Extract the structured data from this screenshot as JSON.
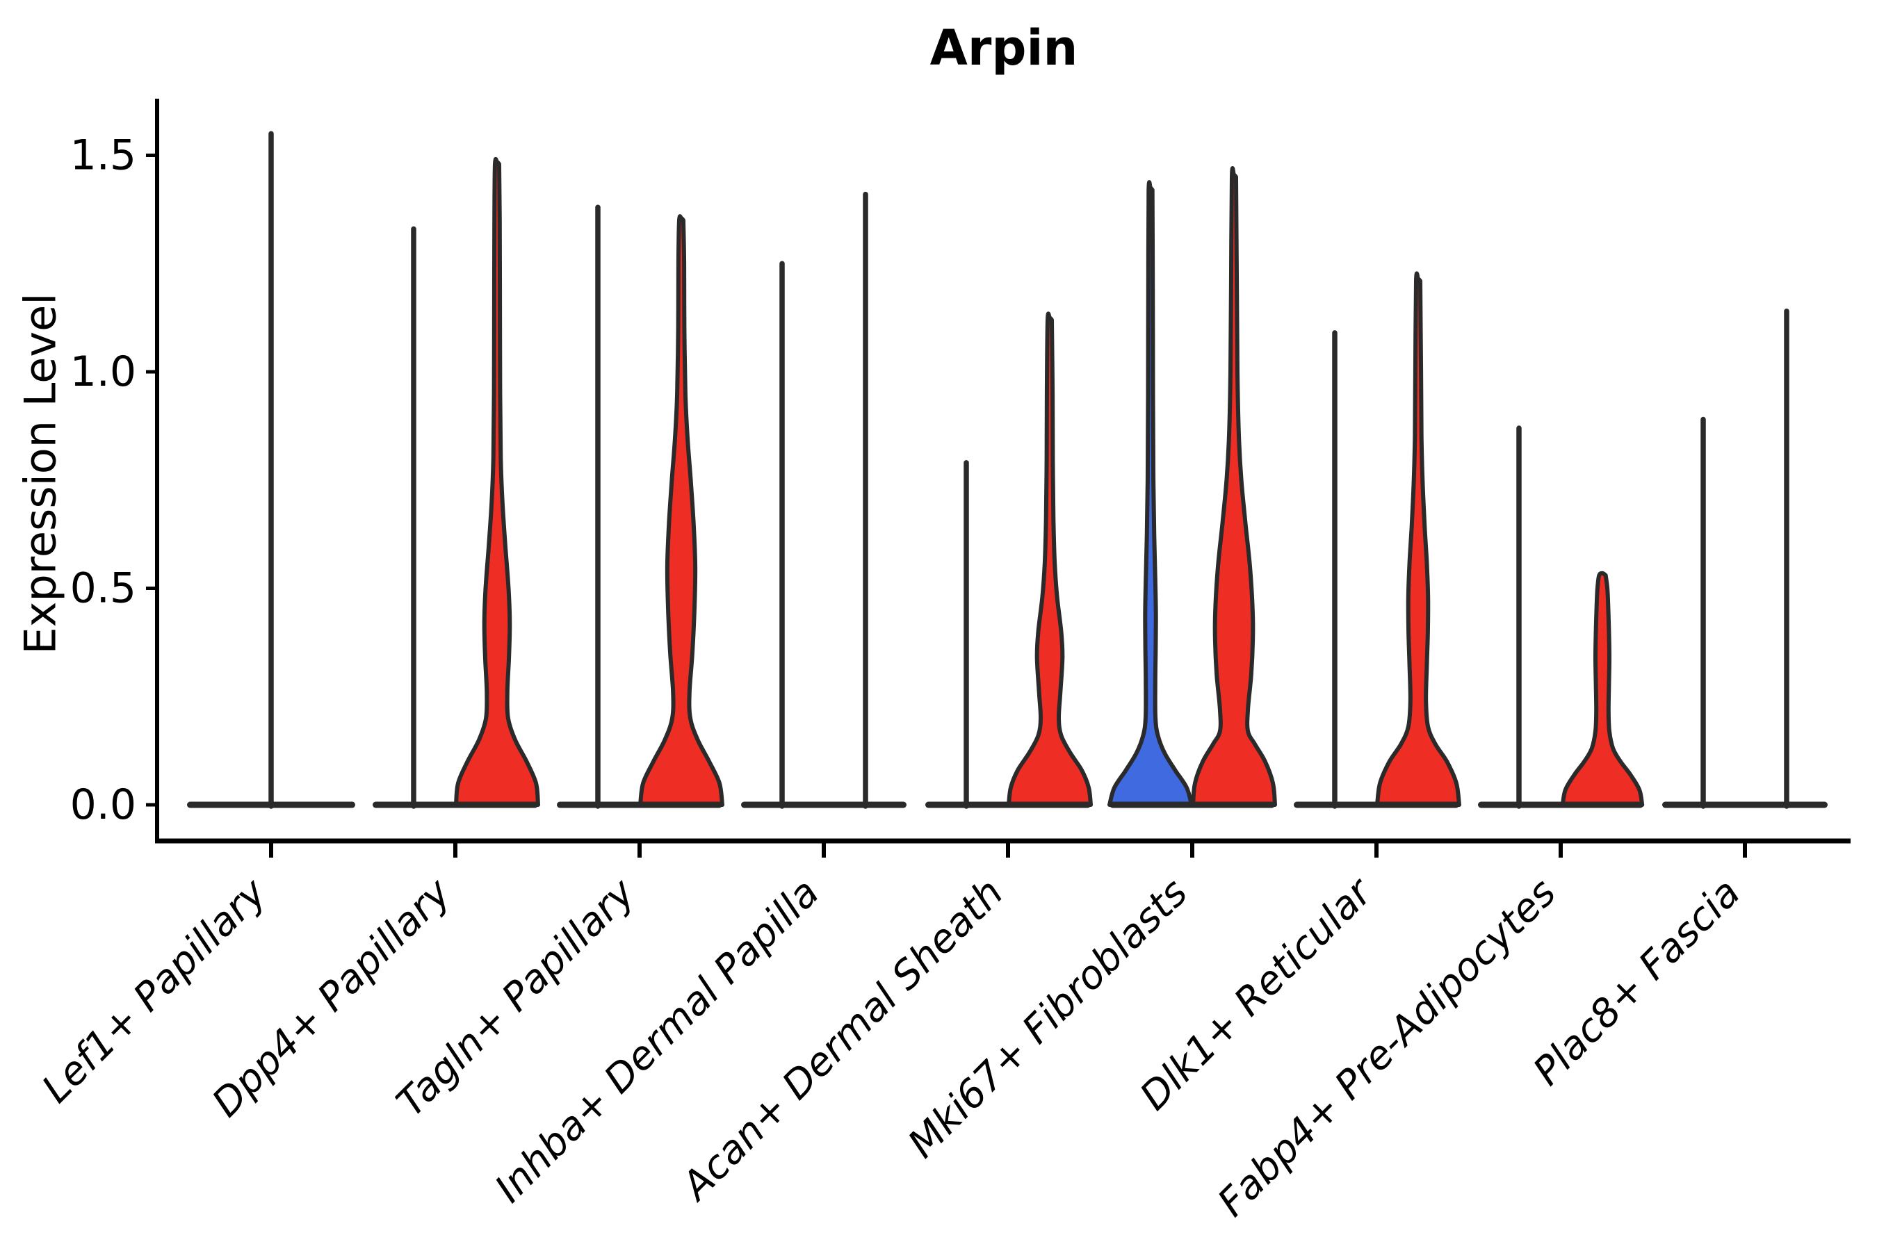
{
  "title": "Arpin",
  "chart_data": {
    "type": "violin",
    "title": "Arpin",
    "xlabel": "",
    "ylabel": "Expression Level",
    "ylim": [
      0,
      1.62
    ],
    "y_ticks": [
      "0.0",
      "0.5",
      "1.0",
      "1.5"
    ],
    "y_tick_values": [
      0.0,
      0.5,
      1.0,
      1.5
    ],
    "grid": false,
    "legend": false,
    "groups_per_category": 2,
    "colors": {
      "red": "#ee2e24",
      "blue": "#3f6ae0",
      "edge": "#2a2a2a",
      "text": "#000000"
    },
    "categories": [
      {
        "label": "Lef1+ Papillary",
        "violins": [
          {
            "side": "center",
            "kind": "line",
            "fill": null,
            "max": 1.55
          }
        ]
      },
      {
        "label": "Dpp4+ Papillary",
        "violins": [
          {
            "side": "left",
            "kind": "line",
            "fill": null,
            "max": 1.33
          },
          {
            "side": "right",
            "kind": "filled",
            "fill": "red",
            "max": 1.48,
            "profile": [
              [
                0,
                1.0
              ],
              [
                0.05,
                0.95
              ],
              [
                0.1,
                0.72
              ],
              [
                0.15,
                0.44
              ],
              [
                0.2,
                0.27
              ],
              [
                0.26,
                0.25
              ],
              [
                0.34,
                0.29
              ],
              [
                0.42,
                0.31
              ],
              [
                0.5,
                0.28
              ],
              [
                0.6,
                0.2
              ],
              [
                0.7,
                0.13
              ],
              [
                0.8,
                0.09
              ],
              [
                0.95,
                0.075
              ],
              [
                1.15,
                0.07
              ],
              [
                1.35,
                0.065
              ],
              [
                1.48,
                0.05
              ]
            ]
          }
        ]
      },
      {
        "label": "Tagln+ Papillary",
        "violins": [
          {
            "side": "left",
            "kind": "line",
            "fill": null,
            "max": 1.38
          },
          {
            "side": "right",
            "kind": "filled",
            "fill": "red",
            "max": 1.35,
            "profile": [
              [
                0,
                1.0
              ],
              [
                0.05,
                0.93
              ],
              [
                0.1,
                0.68
              ],
              [
                0.15,
                0.4
              ],
              [
                0.2,
                0.22
              ],
              [
                0.26,
                0.2
              ],
              [
                0.35,
                0.27
              ],
              [
                0.45,
                0.32
              ],
              [
                0.55,
                0.34
              ],
              [
                0.65,
                0.3
              ],
              [
                0.75,
                0.23
              ],
              [
                0.85,
                0.15
              ],
              [
                0.95,
                0.1
              ],
              [
                1.1,
                0.075
              ],
              [
                1.25,
                0.07
              ],
              [
                1.35,
                0.05
              ]
            ]
          }
        ]
      },
      {
        "label": "Inhba+ Dermal Papilla",
        "violins": [
          {
            "side": "left",
            "kind": "line",
            "fill": null,
            "max": 1.25
          },
          {
            "side": "right",
            "kind": "line",
            "fill": null,
            "max": 1.41
          }
        ]
      },
      {
        "label": "Acan+ Dermal Sheath",
        "violins": [
          {
            "side": "left",
            "kind": "line",
            "fill": null,
            "max": 0.79
          },
          {
            "side": "right",
            "kind": "filled",
            "fill": "red",
            "max": 1.12,
            "profile": [
              [
                0,
                1.0
              ],
              [
                0.04,
                0.95
              ],
              [
                0.08,
                0.78
              ],
              [
                0.12,
                0.5
              ],
              [
                0.16,
                0.28
              ],
              [
                0.2,
                0.22
              ],
              [
                0.26,
                0.26
              ],
              [
                0.34,
                0.31
              ],
              [
                0.4,
                0.28
              ],
              [
                0.48,
                0.18
              ],
              [
                0.56,
                0.12
              ],
              [
                0.66,
                0.09
              ],
              [
                0.8,
                0.075
              ],
              [
                0.95,
                0.07
              ],
              [
                1.12,
                0.05
              ]
            ]
          }
        ]
      },
      {
        "label": "Mki67+ Fibroblasts",
        "violins": [
          {
            "side": "left",
            "kind": "filled",
            "fill": "blue",
            "max": 1.42,
            "profile": [
              [
                0,
                1.0
              ],
              [
                0.04,
                0.88
              ],
              [
                0.08,
                0.6
              ],
              [
                0.12,
                0.34
              ],
              [
                0.16,
                0.18
              ],
              [
                0.2,
                0.12
              ],
              [
                0.28,
                0.115
              ],
              [
                0.36,
                0.125
              ],
              [
                0.44,
                0.13
              ],
              [
                0.52,
                0.115
              ],
              [
                0.62,
                0.09
              ],
              [
                0.75,
                0.07
              ],
              [
                0.95,
                0.06
              ],
              [
                1.2,
                0.055
              ],
              [
                1.42,
                0.045
              ]
            ]
          },
          {
            "side": "right",
            "kind": "filled",
            "fill": "red",
            "max": 1.45,
            "profile": [
              [
                0,
                1.0
              ],
              [
                0.05,
                0.95
              ],
              [
                0.1,
                0.76
              ],
              [
                0.14,
                0.51
              ],
              [
                0.17,
                0.34
              ],
              [
                0.22,
                0.34
              ],
              [
                0.3,
                0.42
              ],
              [
                0.38,
                0.46
              ],
              [
                0.45,
                0.455
              ],
              [
                0.55,
                0.39
              ],
              [
                0.65,
                0.28
              ],
              [
                0.75,
                0.18
              ],
              [
                0.85,
                0.12
              ],
              [
                1.0,
                0.085
              ],
              [
                1.2,
                0.07
              ],
              [
                1.45,
                0.05
              ]
            ]
          }
        ]
      },
      {
        "label": "Dlk1+ Reticular",
        "violins": [
          {
            "side": "left",
            "kind": "line",
            "fill": null,
            "max": 1.09
          },
          {
            "side": "right",
            "kind": "filled",
            "fill": "red",
            "max": 1.21,
            "profile": [
              [
                0,
                1.0
              ],
              [
                0.05,
                0.93
              ],
              [
                0.1,
                0.7
              ],
              [
                0.14,
                0.42
              ],
              [
                0.18,
                0.24
              ],
              [
                0.24,
                0.19
              ],
              [
                0.32,
                0.21
              ],
              [
                0.4,
                0.235
              ],
              [
                0.48,
                0.24
              ],
              [
                0.56,
                0.21
              ],
              [
                0.64,
                0.16
              ],
              [
                0.74,
                0.11
              ],
              [
                0.85,
                0.08
              ],
              [
                1.0,
                0.07
              ],
              [
                1.21,
                0.05
              ]
            ]
          }
        ]
      },
      {
        "label": "Fabp4+ Pre-Adipocytes",
        "violins": [
          {
            "side": "left",
            "kind": "line",
            "fill": null,
            "max": 0.87
          },
          {
            "side": "right",
            "kind": "filled",
            "fill": "red",
            "max": 0.53,
            "profile": [
              [
                0,
                0.97
              ],
              [
                0.035,
                0.9
              ],
              [
                0.07,
                0.68
              ],
              [
                0.1,
                0.44
              ],
              [
                0.13,
                0.26
              ],
              [
                0.17,
                0.17
              ],
              [
                0.22,
                0.15
              ],
              [
                0.28,
                0.16
              ],
              [
                0.34,
                0.17
              ],
              [
                0.4,
                0.16
              ],
              [
                0.46,
                0.14
              ],
              [
                0.5,
                0.12
              ],
              [
                0.53,
                0.08
              ]
            ]
          }
        ]
      },
      {
        "label": "Plac8+ Fascia",
        "violins": [
          {
            "side": "left",
            "kind": "line",
            "fill": null,
            "max": 0.89
          },
          {
            "side": "right",
            "kind": "line",
            "fill": null,
            "max": 1.14
          }
        ]
      }
    ]
  }
}
